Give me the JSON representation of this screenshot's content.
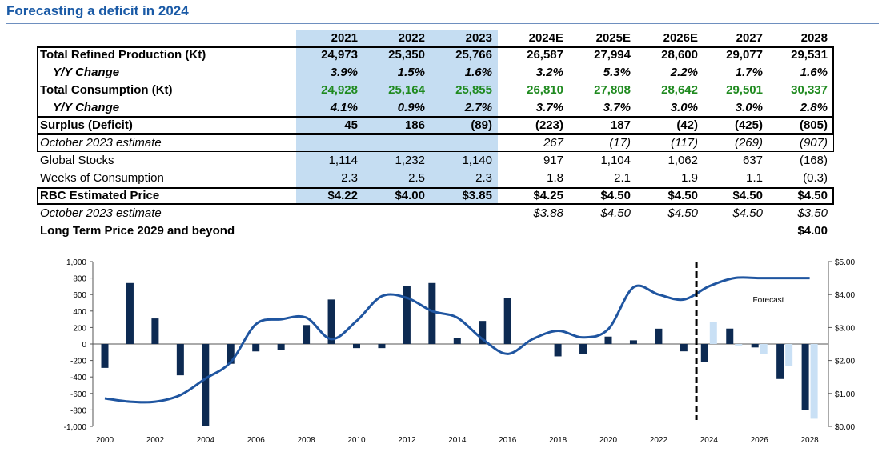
{
  "title": "Forecasting a deficit in 2024",
  "table": {
    "years": [
      "2021",
      "2022",
      "2023",
      "2024E",
      "2025E",
      "2026E",
      "2027",
      "2028"
    ],
    "rows": [
      {
        "label": "Total Refined Production (Kt)",
        "values": [
          "24,973",
          "25,350",
          "25,766",
          "26,587",
          "27,994",
          "28,600",
          "29,077",
          "29,531"
        ]
      },
      {
        "label": "Y/Y Change",
        "values": [
          "3.9%",
          "1.5%",
          "1.6%",
          "3.2%",
          "5.3%",
          "2.2%",
          "1.7%",
          "1.6%"
        ]
      },
      {
        "label": "Total Consumption (Kt)",
        "values": [
          "24,928",
          "25,164",
          "25,855",
          "26,810",
          "27,808",
          "28,642",
          "29,501",
          "30,337"
        ]
      },
      {
        "label": "Y/Y Change",
        "values": [
          "4.1%",
          "0.9%",
          "2.7%",
          "3.7%",
          "3.7%",
          "3.0%",
          "3.0%",
          "2.8%"
        ]
      },
      {
        "label": "Surplus (Deficit)",
        "values": [
          "45",
          "186",
          "(89)",
          "(223)",
          "187",
          "(42)",
          "(425)",
          "(805)"
        ]
      },
      {
        "label": "October 2023 estimate",
        "values": [
          "",
          "",
          "",
          "267",
          "(17)",
          "(117)",
          "(269)",
          "(907)"
        ]
      },
      {
        "label": "Global Stocks",
        "values": [
          "1,114",
          "1,232",
          "1,140",
          "917",
          "1,104",
          "1,062",
          "637",
          "(168)"
        ]
      },
      {
        "label": "Weeks of Consumption",
        "values": [
          "2.3",
          "2.5",
          "2.3",
          "1.8",
          "2.1",
          "1.9",
          "1.1",
          "(0.3)"
        ]
      },
      {
        "label": "RBC Estimated Price",
        "values": [
          "$4.22",
          "$4.00",
          "$3.85",
          "$4.25",
          "$4.50",
          "$4.50",
          "$4.50",
          "$4.50"
        ]
      },
      {
        "label": "October 2023 estimate",
        "values": [
          "",
          "",
          "",
          "$3.88",
          "$4.50",
          "$4.50",
          "$4.50",
          "$3.50"
        ]
      },
      {
        "label": "Long Term Price 2029 and beyond",
        "values": [
          "",
          "",
          "",
          "",
          "",
          "",
          "",
          "$4.00"
        ]
      }
    ]
  },
  "chart_data": {
    "type": "bar",
    "x": [
      2000,
      2001,
      2002,
      2003,
      2004,
      2005,
      2006,
      2007,
      2008,
      2009,
      2010,
      2011,
      2012,
      2013,
      2014,
      2015,
      2016,
      2017,
      2018,
      2019,
      2020,
      2021,
      2022,
      2023,
      2024,
      2025,
      2026,
      2027,
      2028
    ],
    "x_ticks": [
      "2000",
      "2002",
      "2004",
      "2006",
      "2008",
      "2010",
      "2012",
      "2014",
      "2016",
      "2018",
      "2020",
      "2022",
      "2024",
      "2026",
      "2028"
    ],
    "y_left_ticks": [
      "1,000",
      "800",
      "600",
      "400",
      "200",
      "0",
      "-200",
      "-400",
      "-600",
      "-800",
      "-1,000"
    ],
    "y_right_ticks": [
      "$5.00",
      "$4.00",
      "$3.00",
      "$2.00",
      "$1.00",
      "$0.00"
    ],
    "ylim_left": [
      -1000,
      1000
    ],
    "ylim_right": [
      0,
      5
    ],
    "series": [
      {
        "values": [
          -290,
          740,
          310,
          -380,
          -1000,
          -240,
          -90,
          -70,
          230,
          540,
          -50,
          -50,
          700,
          740,
          70,
          280,
          560,
          0,
          -150,
          -120,
          90,
          45,
          186,
          -89,
          -223,
          187,
          -42,
          -425,
          -805
        ],
        "color": "#0d2a52"
      },
      {
        "values": [
          null,
          null,
          null,
          null,
          null,
          null,
          null,
          null,
          null,
          null,
          null,
          null,
          null,
          null,
          null,
          null,
          null,
          null,
          null,
          null,
          null,
          null,
          null,
          null,
          267,
          -17,
          -117,
          -269,
          -907
        ],
        "color": "#c9e0f5"
      },
      {
        "values": [
          0.85,
          0.75,
          0.75,
          0.95,
          1.45,
          1.95,
          3.1,
          3.25,
          3.3,
          2.65,
          3.2,
          3.95,
          3.9,
          3.5,
          3.3,
          2.65,
          2.2,
          2.65,
          2.9,
          2.7,
          2.95,
          4.22,
          4.0,
          3.85,
          4.25,
          4.5,
          4.5,
          4.5,
          4.5
        ],
        "color": "#1f55a0",
        "axis": "right"
      }
    ],
    "annotation": "Forecast",
    "divider_between": [
      2023,
      2024
    ]
  }
}
